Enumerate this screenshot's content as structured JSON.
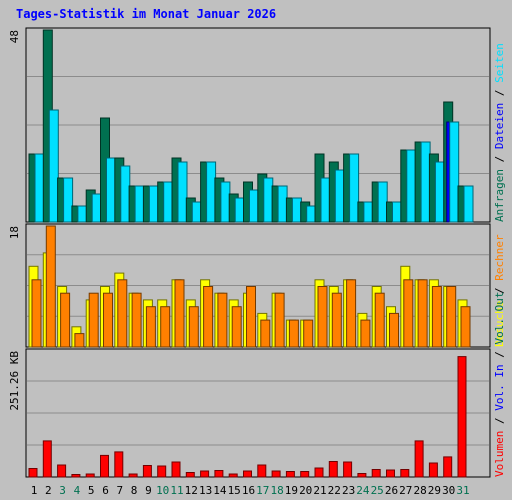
{
  "chart_data": {
    "type": "bar",
    "title": "Tages-Statistik im Monat Januar 2026",
    "categories": [
      "1",
      "2",
      "3",
      "4",
      "5",
      "6",
      "7",
      "8",
      "9",
      "10",
      "11",
      "12",
      "13",
      "14",
      "15",
      "16",
      "17",
      "18",
      "19",
      "20",
      "21",
      "22",
      "23",
      "24",
      "25",
      "26",
      "27",
      "28",
      "29",
      "30",
      "31"
    ],
    "weekend_days": [
      "3",
      "4",
      "10",
      "11",
      "17",
      "18",
      "24",
      "25",
      "31"
    ],
    "panels": [
      {
        "id": "hits",
        "y_tick_labels": [
          "48"
        ],
        "ylim": [
          0,
          48
        ],
        "series": [
          {
            "name": "Anfragen",
            "color": "#007050",
            "values": [
              17,
              48,
              11,
              4,
              8,
              26,
              16,
              9,
              9,
              10,
              16,
              6,
              15,
              11,
              7,
              10,
              12,
              9,
              6,
              5,
              17,
              15,
              17,
              5,
              10,
              5,
              18,
              20,
              17,
              30,
              9
            ]
          },
          {
            "name": "Dateien",
            "color": "#0000ff",
            "values": [
              0,
              0,
              0,
              0,
              0,
              0,
              0,
              0,
              0,
              0,
              0,
              0,
              0,
              0,
              0,
              0,
              0,
              0,
              0,
              0,
              0,
              0,
              0,
              0,
              0,
              0,
              0,
              0,
              0,
              25,
              0
            ]
          },
          {
            "name": "Seiten",
            "color": "#00e0ff",
            "values": [
              17,
              28,
              11,
              4,
              7,
              16,
              14,
              9,
              9,
              10,
              15,
              5,
              15,
              10,
              6,
              8,
              11,
              9,
              6,
              4,
              11,
              13,
              17,
              5,
              10,
              5,
              18,
              20,
              15,
              25,
              9
            ]
          }
        ],
        "legend": [
          "Anfragen",
          "Dateien",
          "Seiten"
        ]
      },
      {
        "id": "visits",
        "y_tick_labels": [
          "18"
        ],
        "ylim": [
          0,
          18
        ],
        "series": [
          {
            "name": "Besuche",
            "color": "#ffff00",
            "values": [
              12,
              14,
              9,
              3,
              7,
              9,
              11,
              8,
              7,
              7,
              10,
              7,
              10,
              8,
              7,
              8,
              5,
              8,
              4,
              4,
              10,
              9,
              10,
              5,
              9,
              6,
              12,
              10,
              10,
              9,
              7
            ]
          },
          {
            "name": "Rechner",
            "color": "#ff8000",
            "values": [
              10,
              18,
              8,
              2,
              8,
              8,
              10,
              8,
              6,
              6,
              10,
              6,
              9,
              8,
              6,
              9,
              4,
              8,
              4,
              4,
              9,
              8,
              10,
              4,
              8,
              5,
              10,
              10,
              9,
              9,
              6
            ]
          }
        ],
        "legend": [
          "Besuche",
          "Rechner"
        ]
      },
      {
        "id": "volume",
        "y_tick_labels": [
          "251.26 KB"
        ],
        "ylim": [
          0,
          251.26
        ],
        "series": [
          {
            "name": "Volumen",
            "color": "#ff0000",
            "values": [
              17,
              72,
              24,
              5,
              6,
              43,
              50,
              6,
              23,
              22,
              30,
              9,
              12,
              13,
              6,
              12,
              24,
              12,
              11,
              11,
              18,
              31,
              30,
              7,
              15,
              14,
              15,
              72,
              28,
              40,
              240
            ]
          }
        ],
        "legend": [
          "Volumen",
          "Vol. In",
          "Vol. Out"
        ]
      }
    ]
  },
  "legend_colors": {
    "Anfragen": "#007050",
    "Dateien": "#0000ff",
    "Seiten": "#00e0ff",
    "Besuche": "#ffff00",
    "Rechner": "#ff8000",
    "Volumen": "#ff0000",
    "Vol. In": "#0000ff",
    "Vol. Out": "#007050",
    "separator": "#000000"
  },
  "colors": {
    "background": "#c0c0c0",
    "panel_border": "#000000",
    "gridline": "#8c8c8c",
    "weekday_label": "#000000",
    "weekend_label": "#007050",
    "title": "#0000ff"
  }
}
